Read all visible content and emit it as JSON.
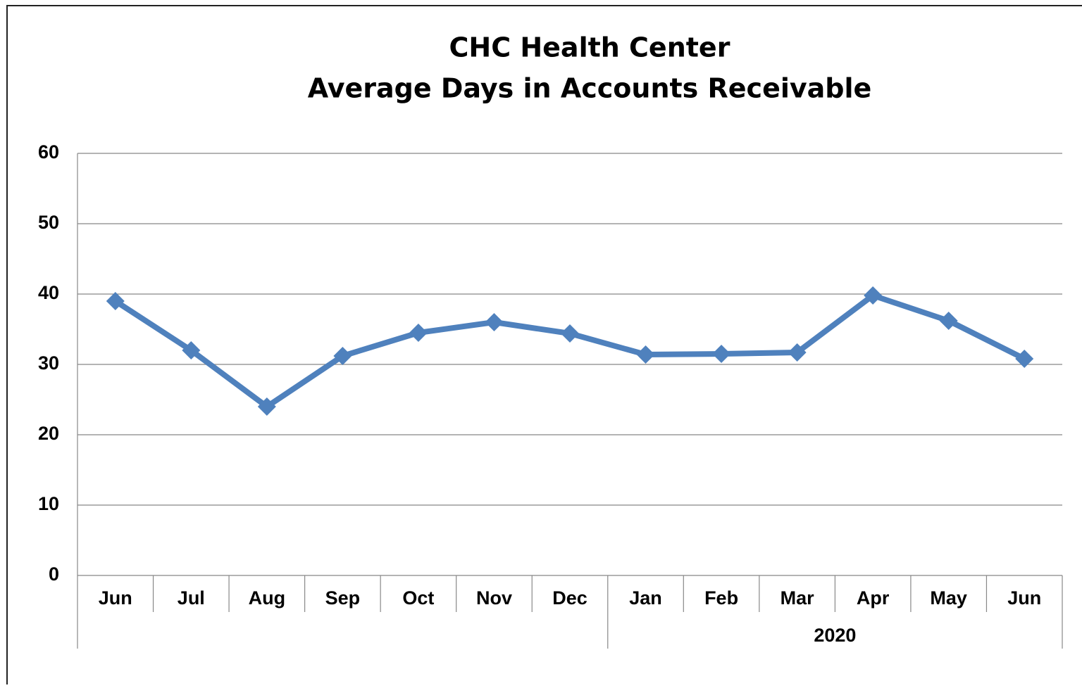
{
  "chart_data": {
    "type": "line",
    "title": [
      "CHC Health Center",
      "Average Days in Accounts Receivable"
    ],
    "categories": [
      "Jun",
      "Jul",
      "Aug",
      "Sep",
      "Oct",
      "Nov",
      "Dec",
      "Jan",
      "Feb",
      "Mar",
      "Apr",
      "May",
      "Jun"
    ],
    "category_groups": [
      {
        "label": "2020",
        "from": 7,
        "to": 12
      }
    ],
    "series": [
      {
        "color": "#4f81bd",
        "values": [
          39,
          32,
          24,
          31.2,
          34.5,
          36,
          34.4,
          31.4,
          31.5,
          31.7,
          39.8,
          36.2,
          30.8
        ]
      }
    ],
    "ylim": [
      0,
      60
    ],
    "yticks": [
      0,
      10,
      20,
      30,
      40,
      50,
      60
    ],
    "grid": true
  }
}
